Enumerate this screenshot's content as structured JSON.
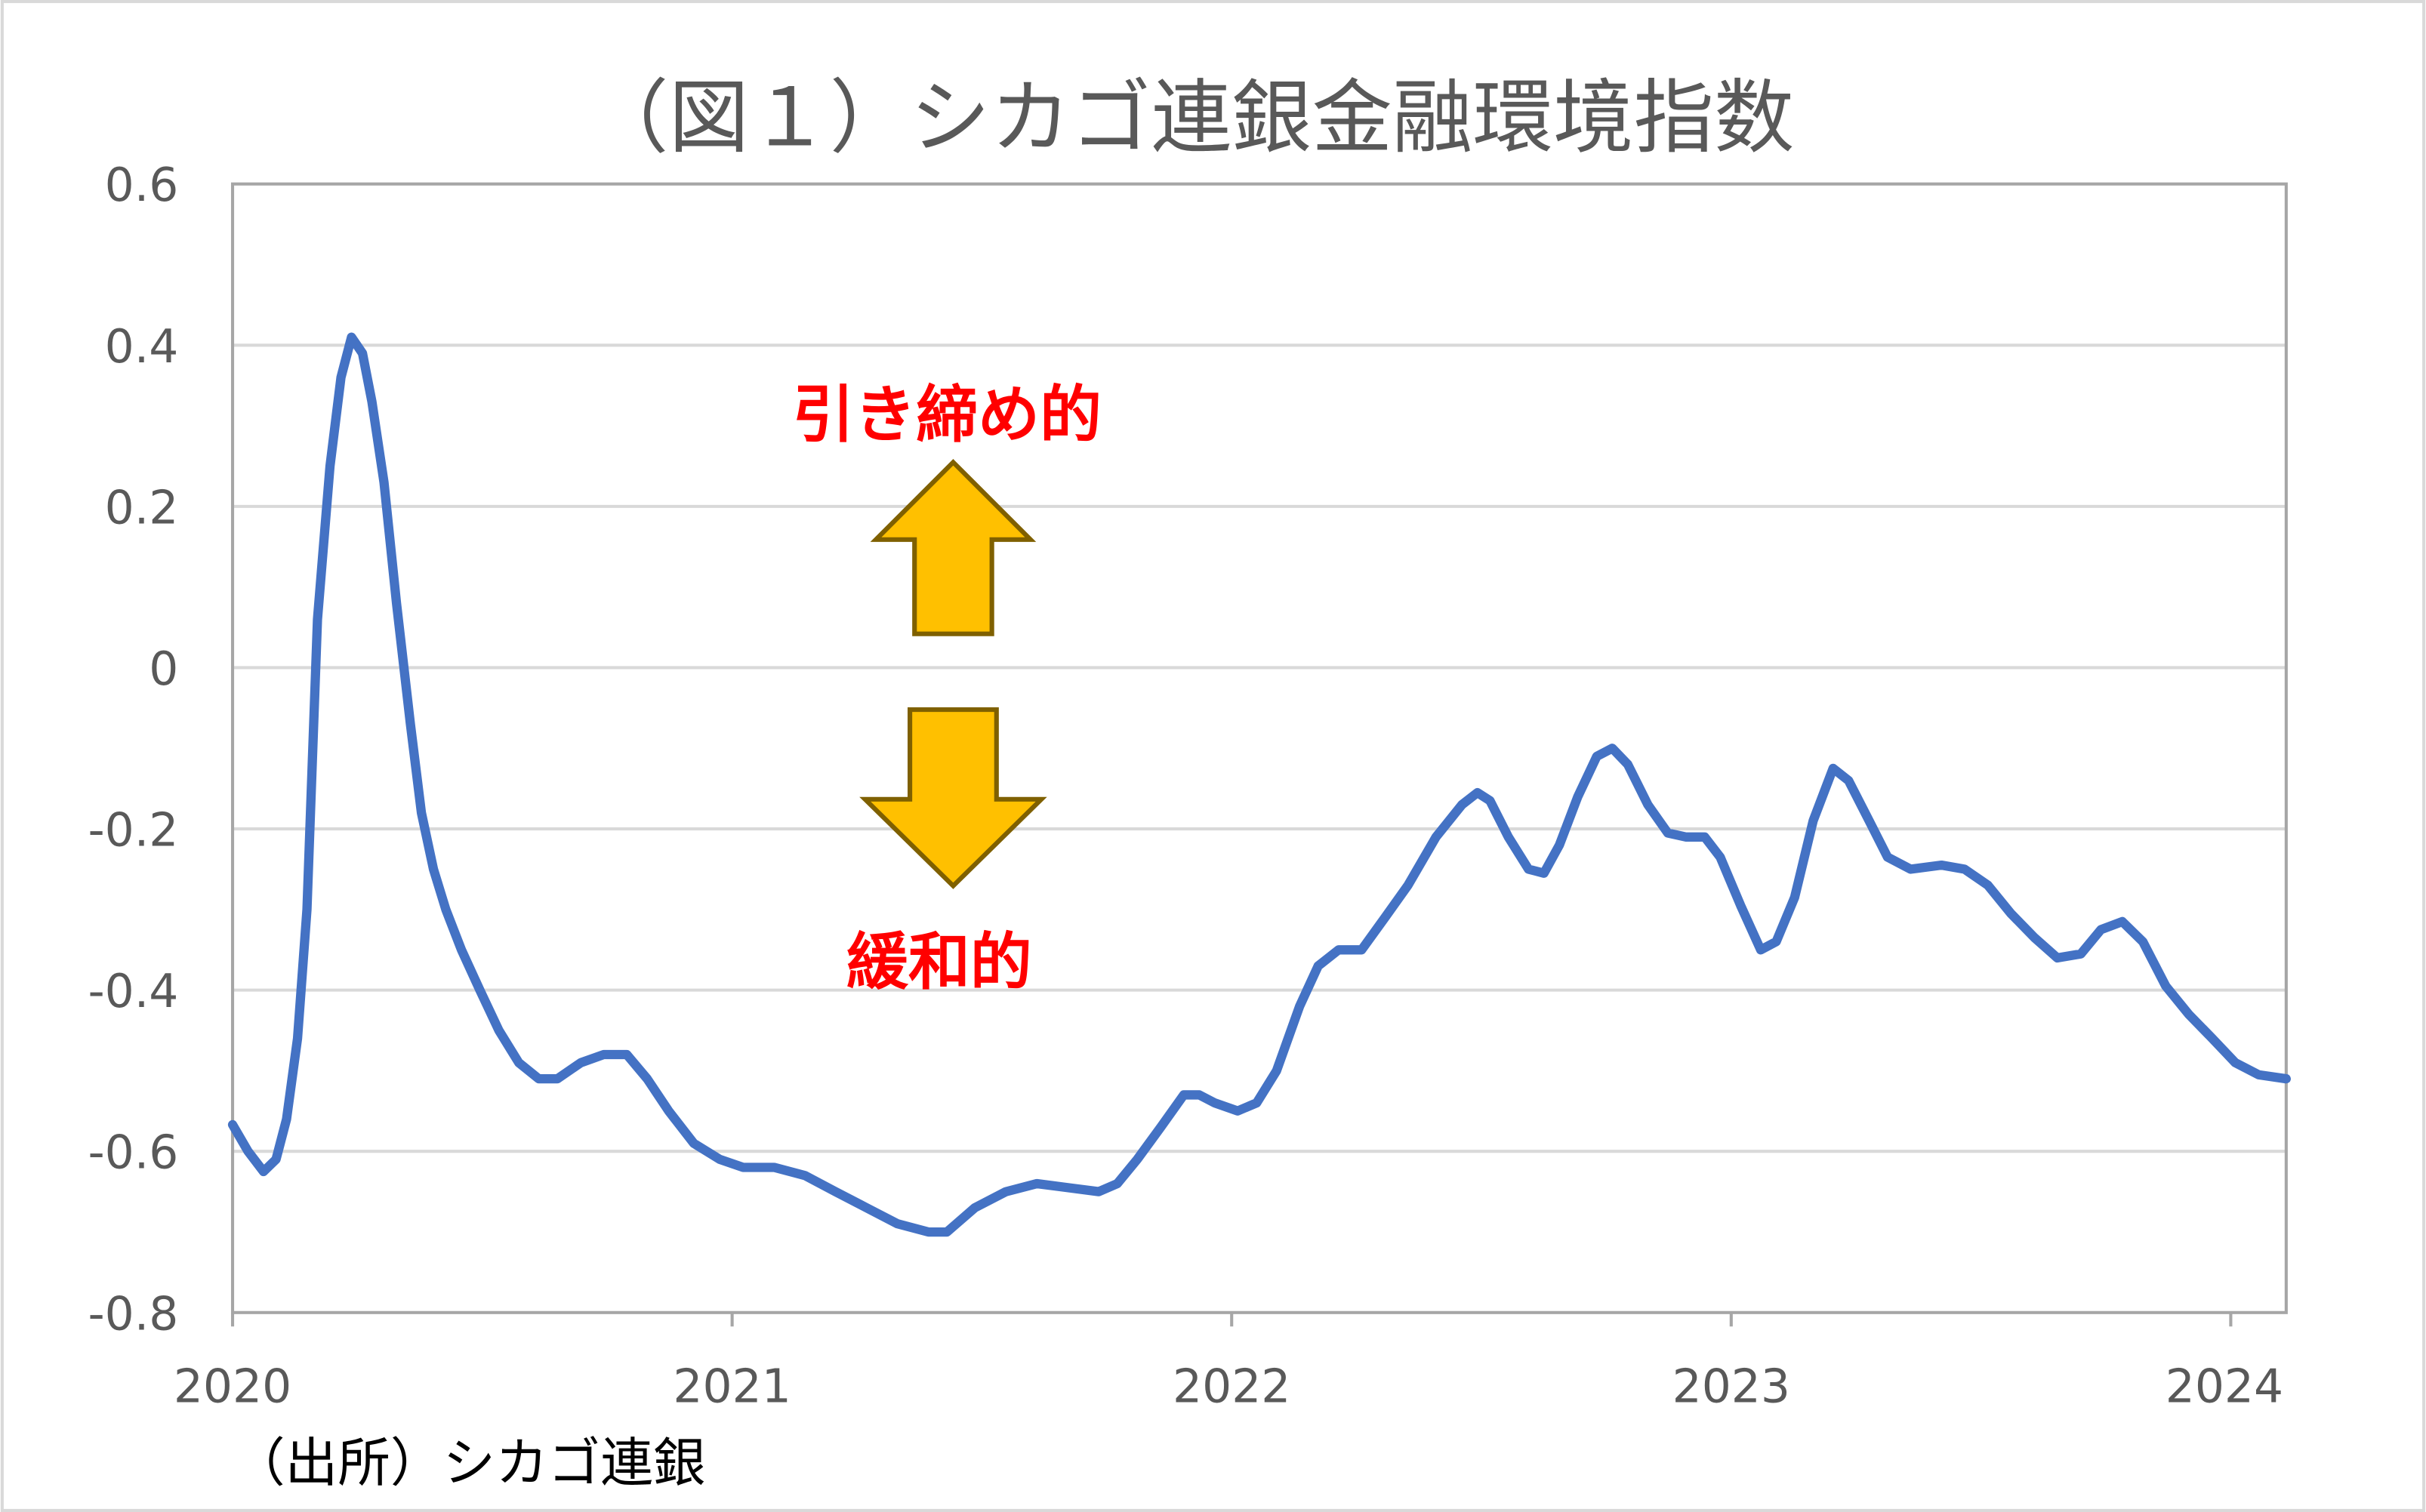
{
  "chart_data": {
    "type": "line",
    "title": "（図１）シカゴ連銀金融環境指数",
    "xlabel": "",
    "ylabel": "",
    "xlim": [
      2020,
      2024.111
    ],
    "ylim": [
      -0.8,
      0.6
    ],
    "x_ticks": [
      "2020",
      "2021",
      "2022",
      "2023",
      "2024"
    ],
    "y_ticks": [
      "0.6",
      "0.4",
      "0.2",
      "0",
      "-0.2",
      "-0.4",
      "-0.6",
      "-0.8"
    ],
    "grid": true,
    "legend": "none",
    "line_color": "#4472C4",
    "annotations": {
      "tightening": "引き締め的",
      "easing": "緩和的",
      "annotation_color": "#FF0000",
      "arrow_fill": "#FFC000",
      "arrow_stroke": "#7F6000"
    },
    "source": "（出所）シカゴ連銀",
    "series": [
      {
        "x": [
          2020.0,
          2020.031,
          2020.062,
          2020.087,
          2020.108,
          2020.13,
          2020.149,
          2020.17,
          2020.195,
          2020.217,
          2020.238,
          2020.26,
          2020.279,
          2020.303,
          2020.328,
          2020.356,
          2020.378,
          2020.402,
          2020.427,
          2020.458,
          2020.495,
          2020.533,
          2020.573,
          2020.613,
          2020.65,
          2020.697,
          2020.743,
          2020.789,
          2020.83,
          2020.873,
          2020.923,
          2020.975,
          2021.022,
          2021.084,
          2021.146,
          2021.207,
          2021.269,
          2021.331,
          2021.393,
          2021.43,
          2021.486,
          2021.548,
          2021.61,
          2021.672,
          2021.734,
          2021.771,
          2021.811,
          2021.858,
          2021.904,
          2021.935,
          2021.966,
          2022.012,
          2022.05,
          2022.09,
          2022.136,
          2022.173,
          2022.214,
          2022.26,
          2022.307,
          2022.353,
          2022.409,
          2022.461,
          2022.492,
          2022.517,
          2022.554,
          2022.594,
          2022.625,
          2022.656,
          2022.693,
          2022.731,
          2022.762,
          2022.793,
          2022.833,
          2022.873,
          2022.91,
          2022.947,
          2022.978,
          2023.019,
          2023.059,
          2023.09,
          2023.127,
          2023.164,
          2023.204,
          2023.235,
          2023.276,
          2023.313,
          2023.359,
          2023.421,
          2023.467,
          2023.514,
          2023.56,
          2023.607,
          2023.653,
          2023.7,
          2023.74,
          2023.783,
          2023.824,
          2023.87,
          2023.916,
          2023.963,
          2024.009,
          2024.056,
          2024.111
        ],
        "y": [
          -0.567,
          -0.6,
          -0.625,
          -0.61,
          -0.56,
          -0.46,
          -0.3,
          0.06,
          0.25,
          0.36,
          0.41,
          0.39,
          0.33,
          0.23,
          0.08,
          -0.07,
          -0.18,
          -0.25,
          -0.3,
          -0.35,
          -0.4,
          -0.45,
          -0.49,
          -0.51,
          -0.51,
          -0.49,
          -0.48,
          -0.48,
          -0.51,
          -0.55,
          -0.59,
          -0.61,
          -0.62,
          -0.62,
          -0.63,
          -0.65,
          -0.67,
          -0.69,
          -0.7,
          -0.7,
          -0.67,
          -0.65,
          -0.64,
          -0.645,
          -0.65,
          -0.64,
          -0.61,
          -0.57,
          -0.53,
          -0.53,
          -0.54,
          -0.55,
          -0.54,
          -0.5,
          -0.42,
          -0.37,
          -0.35,
          -0.35,
          -0.31,
          -0.27,
          -0.21,
          -0.17,
          -0.155,
          -0.165,
          -0.21,
          -0.25,
          -0.255,
          -0.22,
          -0.16,
          -0.11,
          -0.1,
          -0.12,
          -0.17,
          -0.205,
          -0.21,
          -0.21,
          -0.235,
          -0.295,
          -0.35,
          -0.34,
          -0.285,
          -0.19,
          -0.125,
          -0.14,
          -0.19,
          -0.235,
          -0.25,
          -0.245,
          -0.25,
          -0.27,
          -0.305,
          -0.335,
          -0.36,
          -0.355,
          -0.325,
          -0.315,
          -0.34,
          -0.395,
          -0.43,
          -0.46,
          -0.49,
          -0.505,
          -0.51
        ]
      }
    ]
  }
}
